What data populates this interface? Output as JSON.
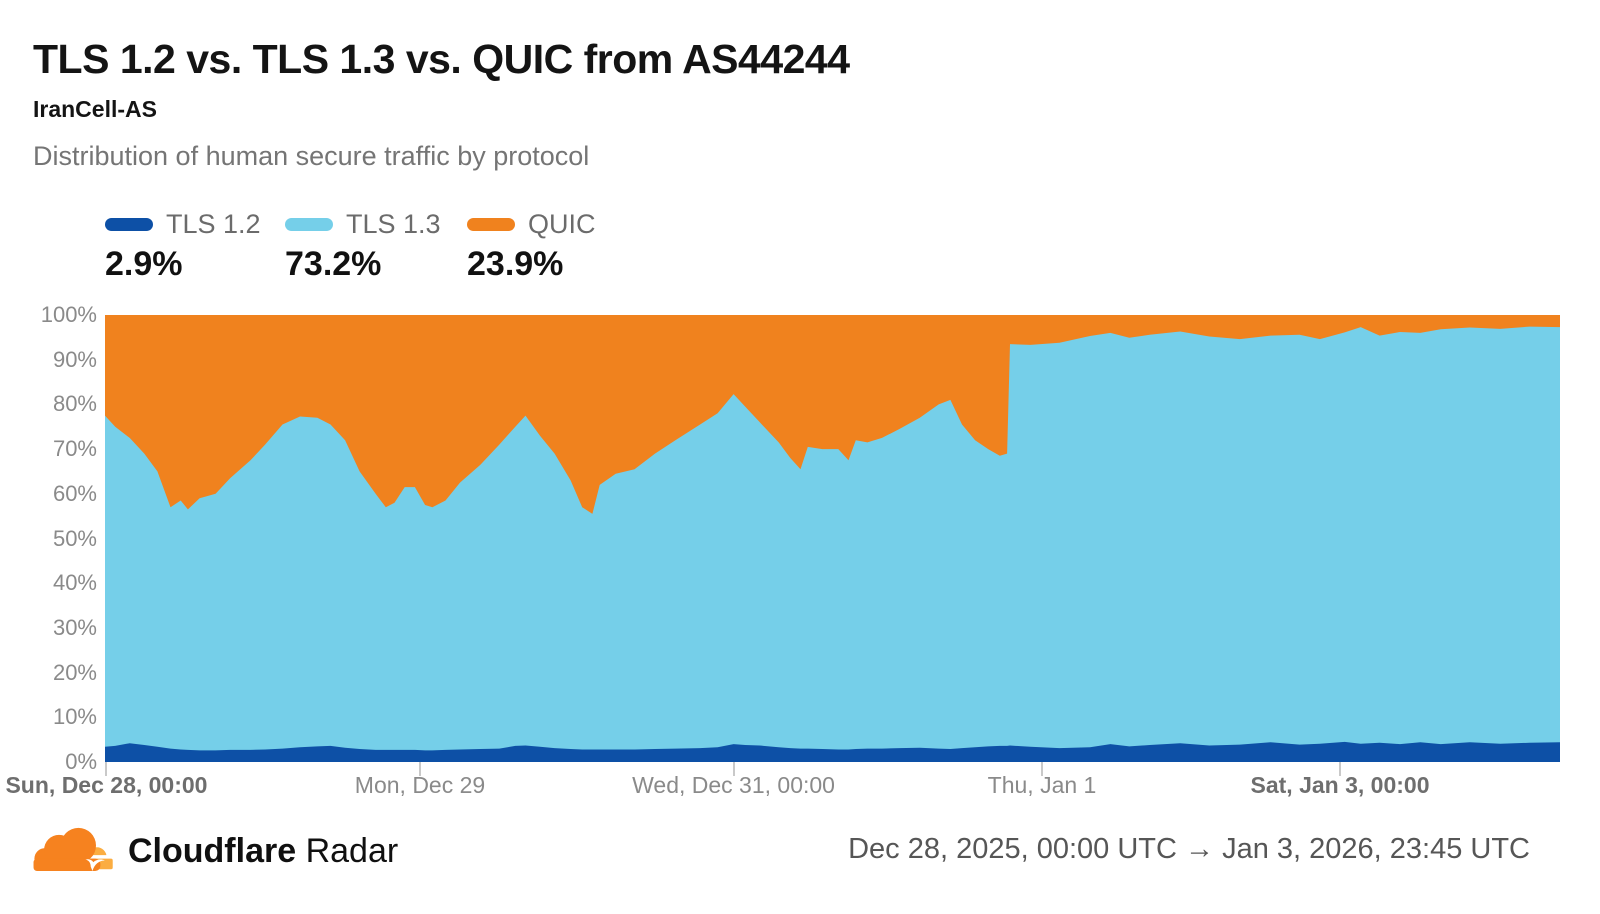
{
  "header": {
    "title": "TLS 1.2 vs. TLS 1.3 vs. QUIC from AS44244",
    "subtitle": "IranCell-AS",
    "description": "Distribution of human secure traffic by protocol"
  },
  "legend": {
    "items": [
      {
        "label": "TLS 1.2",
        "value": "2.9%",
        "color": "#0d50a6"
      },
      {
        "label": "TLS 1.3",
        "value": "73.2%",
        "color": "#75cfe9"
      },
      {
        "label": "QUIC",
        "value": "23.9%",
        "color": "#f0821e"
      }
    ]
  },
  "chart_data": {
    "type": "area",
    "stacked": true,
    "unit": "%",
    "title": "Distribution of human secure traffic by protocol",
    "ylim": [
      0,
      100
    ],
    "grid": false,
    "legend_position": "top-left",
    "y_ticks": [
      "100%",
      "90%",
      "80%",
      "70%",
      "60%",
      "50%",
      "40%",
      "30%",
      "20%",
      "10%",
      "0%"
    ],
    "x_ticks": [
      {
        "pos": 0.001,
        "label": "Sun, Dec 28, 00:00",
        "bold": true
      },
      {
        "pos": 0.2165,
        "label": "Mon, Dec 29",
        "bold": false
      },
      {
        "pos": 0.432,
        "label": "Wed, Dec 31, 00:00",
        "bold": false
      },
      {
        "pos": 0.644,
        "label": "Thu, Jan 1",
        "bold": false
      },
      {
        "pos": 0.8488,
        "label": "Sat, Jan 3, 00:00",
        "bold": true
      }
    ],
    "x_range": [
      "Dec 28, 2025, 00:00 UTC",
      "Jan 3, 2026, 23:45 UTC"
    ],
    "x": [
      0,
      0.007,
      0.017,
      0.027,
      0.036,
      0.045,
      0.052,
      0.057,
      0.065,
      0.076,
      0.086,
      0.1,
      0.11,
      0.122,
      0.134,
      0.146,
      0.155,
      0.165,
      0.175,
      0.186,
      0.193,
      0.199,
      0.206,
      0.213,
      0.22,
      0.225,
      0.234,
      0.244,
      0.258,
      0.271,
      0.282,
      0.289,
      0.299,
      0.309,
      0.32,
      0.328,
      0.335,
      0.34,
      0.351,
      0.364,
      0.378,
      0.392,
      0.409,
      0.421,
      0.432,
      0.44,
      0.45,
      0.463,
      0.471,
      0.478,
      0.483,
      0.493,
      0.504,
      0.511,
      0.516,
      0.524,
      0.534,
      0.546,
      0.56,
      0.573,
      0.581,
      0.589,
      0.598,
      0.607,
      0.615,
      0.62,
      0.622,
      0.636,
      0.656,
      0.677,
      0.691,
      0.704,
      0.718,
      0.739,
      0.759,
      0.78,
      0.801,
      0.821,
      0.835,
      0.852,
      0.863,
      0.876,
      0.89,
      0.904,
      0.918,
      0.938,
      0.959,
      0.979,
      1
    ],
    "series": [
      {
        "name": "TLS 1.2",
        "color": "#0d50a6",
        "values": [
          3.4,
          3.6,
          4.2,
          3.8,
          3.4,
          3,
          2.8,
          2.7,
          2.6,
          2.6,
          2.7,
          2.7,
          2.8,
          3,
          3.3,
          3.5,
          3.6,
          3.2,
          2.9,
          2.7,
          2.7,
          2.7,
          2.7,
          2.7,
          2.6,
          2.6,
          2.7,
          2.8,
          2.9,
          3,
          3.6,
          3.7,
          3.4,
          3.1,
          2.9,
          2.8,
          2.8,
          2.8,
          2.8,
          2.8,
          2.9,
          3,
          3.1,
          3.3,
          4,
          3.8,
          3.7,
          3.3,
          3.1,
          3,
          3,
          2.9,
          2.8,
          2.8,
          2.9,
          3,
          3,
          3.1,
          3.2,
          3,
          2.9,
          3.1,
          3.3,
          3.5,
          3.6,
          3.6,
          3.7,
          3.4,
          3.1,
          3.3,
          4,
          3.5,
          3.8,
          4.2,
          3.7,
          3.9,
          4.4,
          3.9,
          4.1,
          4.5,
          4.1,
          4.3,
          4,
          4.4,
          4,
          4.4,
          4.1,
          4.3,
          4.4
        ]
      },
      {
        "name": "TLS 1.3",
        "color": "#75cfe9",
        "values": [
          74.1,
          71.4,
          68.3,
          65.2,
          61.6,
          54,
          55.7,
          53.8,
          56.4,
          57.4,
          60.8,
          64.8,
          68.2,
          72.5,
          74,
          73.5,
          71.9,
          68.8,
          62.1,
          57.3,
          54.3,
          55.3,
          58.8,
          58.8,
          54.9,
          54.4,
          55.8,
          59.7,
          63.6,
          68,
          71.4,
          73.8,
          69.6,
          65.9,
          60.1,
          54.2,
          52.7,
          59.2,
          61.7,
          62.7,
          66.1,
          69,
          72.4,
          74.7,
          78.3,
          75.7,
          72.3,
          68.2,
          64.9,
          62.5,
          67.5,
          67.1,
          67.2,
          64.7,
          69.1,
          68.5,
          69.5,
          71.4,
          73.8,
          77,
          78.1,
          72.4,
          68.7,
          66.5,
          64.9,
          65.4,
          89.8,
          89.9,
          90.7,
          92,
          92,
          91.4,
          91.8,
          92.1,
          91.5,
          90.7,
          91,
          91.7,
          90.5,
          91.6,
          93.2,
          91.1,
          92.2,
          91.6,
          92.8,
          92.8,
          92.8,
          93.1,
          92.9
        ]
      },
      {
        "name": "QUIC",
        "color": "#f0821e",
        "values": [
          22.5,
          25,
          27.5,
          31,
          35,
          43,
          41.5,
          43.5,
          41,
          40,
          36.5,
          32.5,
          29,
          24.5,
          22.7,
          23,
          24.5,
          28,
          35,
          40,
          43,
          42,
          38.5,
          38.5,
          42.5,
          43,
          41.5,
          37.5,
          33.5,
          29,
          25,
          22.5,
          27,
          31,
          37,
          43,
          44.5,
          38,
          35.5,
          34.5,
          31,
          28,
          24.5,
          22,
          17.7,
          20.5,
          24,
          28.5,
          32,
          34.5,
          29.5,
          30,
          30,
          32.5,
          28,
          28.5,
          27.5,
          25.5,
          23,
          20,
          19,
          24.5,
          28,
          30,
          31.5,
          31,
          6.5,
          6.7,
          6.2,
          4.7,
          4,
          5.1,
          4.4,
          3.7,
          4.8,
          5.4,
          4.6,
          4.4,
          5.4,
          3.9,
          2.7,
          4.6,
          3.8,
          4,
          3.2,
          2.8,
          3.1,
          2.6,
          2.7
        ]
      }
    ]
  },
  "footer": {
    "brand": "Cloudflare",
    "brand_suffix": "Radar",
    "date_range": "Dec 28, 2025, 00:00 UTC → Jan 3, 2026, 23:45 UTC"
  }
}
